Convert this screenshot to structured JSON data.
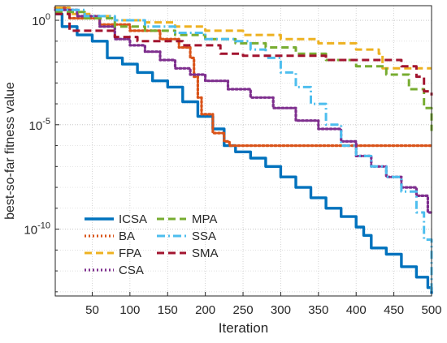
{
  "chart_data": {
    "type": "line",
    "title": "",
    "xlabel": "Iteration",
    "ylabel": "best-so-far fitness value",
    "xlim": [
      1,
      500
    ],
    "ylim_log10": [
      -13.2,
      0.7
    ],
    "yscale": "log",
    "grid": true,
    "legend_position": "bottom-left",
    "x_ticks": [
      50,
      100,
      150,
      200,
      250,
      300,
      350,
      400,
      450,
      500
    ],
    "y_ticks": [
      {
        "exp": 0,
        "label": "10^0"
      },
      {
        "exp": -5,
        "label": "10^-5"
      },
      {
        "exp": -10,
        "label": "10^-10"
      }
    ],
    "series": [
      {
        "name": "ICSA",
        "color": "#0072BD",
        "style": "solid",
        "width": 3.4,
        "log10_points": [
          [
            1,
            0.3
          ],
          [
            10,
            -0.3
          ],
          [
            30,
            -0.7
          ],
          [
            50,
            -1.0
          ],
          [
            70,
            -1.8
          ],
          [
            90,
            -2.1
          ],
          [
            110,
            -2.5
          ],
          [
            130,
            -2.9
          ],
          [
            150,
            -3.2
          ],
          [
            170,
            -3.9
          ],
          [
            190,
            -4.6
          ],
          [
            210,
            -5.2
          ],
          [
            225,
            -6.0
          ],
          [
            240,
            -6.3
          ],
          [
            260,
            -6.6
          ],
          [
            280,
            -7.0
          ],
          [
            300,
            -7.5
          ],
          [
            320,
            -8.0
          ],
          [
            340,
            -8.5
          ],
          [
            360,
            -9.0
          ],
          [
            380,
            -9.4
          ],
          [
            400,
            -9.9
          ],
          [
            410,
            -10.3
          ],
          [
            420,
            -10.9
          ],
          [
            440,
            -11.2
          ],
          [
            460,
            -11.8
          ],
          [
            480,
            -12.3
          ],
          [
            495,
            -12.8
          ],
          [
            500,
            -13.1
          ]
        ]
      },
      {
        "name": "BA",
        "color": "#D95319",
        "style": "dotted",
        "width": 3.2,
        "log10_points": [
          [
            1,
            0.6
          ],
          [
            20,
            0.1
          ],
          [
            60,
            -0.2
          ],
          [
            100,
            -0.5
          ],
          [
            140,
            -0.9
          ],
          [
            165,
            -1.3
          ],
          [
            180,
            -1.8
          ],
          [
            185,
            -2.7
          ],
          [
            190,
            -3.7
          ],
          [
            195,
            -4.5
          ],
          [
            210,
            -5.4
          ],
          [
            225,
            -5.8
          ],
          [
            232,
            -6.0
          ],
          [
            500,
            -6.0
          ]
        ]
      },
      {
        "name": "FPA",
        "color": "#EDB120",
        "style": "dashed",
        "width": 3.0,
        "log10_points": [
          [
            1,
            0.6
          ],
          [
            20,
            0.3
          ],
          [
            50,
            0.2
          ],
          [
            80,
            0.0
          ],
          [
            120,
            -0.1
          ],
          [
            160,
            -0.3
          ],
          [
            200,
            -0.5
          ],
          [
            250,
            -0.7
          ],
          [
            300,
            -0.9
          ],
          [
            350,
            -1.1
          ],
          [
            400,
            -1.4
          ],
          [
            430,
            -1.6
          ],
          [
            435,
            -2.3
          ],
          [
            500,
            -2.3
          ]
        ]
      },
      {
        "name": "CSA",
        "color": "#7E2F8E",
        "style": "dotted",
        "width": 3.2,
        "log10_points": [
          [
            1,
            0.5
          ],
          [
            30,
            0.2
          ],
          [
            60,
            -0.3
          ],
          [
            80,
            -0.9
          ],
          [
            100,
            -1.2
          ],
          [
            120,
            -1.5
          ],
          [
            140,
            -1.9
          ],
          [
            160,
            -2.3
          ],
          [
            180,
            -2.6
          ],
          [
            200,
            -2.9
          ],
          [
            230,
            -3.3
          ],
          [
            260,
            -3.7
          ],
          [
            290,
            -4.2
          ],
          [
            320,
            -4.8
          ],
          [
            350,
            -5.2
          ],
          [
            380,
            -5.8
          ],
          [
            400,
            -6.5
          ],
          [
            420,
            -7.0
          ],
          [
            440,
            -7.5
          ],
          [
            460,
            -8.0
          ],
          [
            480,
            -8.4
          ],
          [
            495,
            -9.2
          ],
          [
            500,
            -9.2
          ]
        ]
      },
      {
        "name": "MPA",
        "color": "#77AC30",
        "style": "dashed",
        "width": 3.0,
        "log10_points": [
          [
            1,
            0.4
          ],
          [
            40,
            0.1
          ],
          [
            80,
            -0.3
          ],
          [
            120,
            -0.5
          ],
          [
            160,
            -0.7
          ],
          [
            200,
            -0.9
          ],
          [
            240,
            -1.1
          ],
          [
            280,
            -1.3
          ],
          [
            320,
            -1.6
          ],
          [
            360,
            -1.9
          ],
          [
            400,
            -2.2
          ],
          [
            440,
            -2.6
          ],
          [
            470,
            -3.3
          ],
          [
            490,
            -4.2
          ],
          [
            500,
            -5.3
          ]
        ]
      },
      {
        "name": "SSA",
        "color": "#4DBEEE",
        "style": "dashdot",
        "width": 3.0,
        "log10_points": [
          [
            1,
            0.5
          ],
          [
            40,
            0.2
          ],
          [
            80,
            0.0
          ],
          [
            120,
            -0.3
          ],
          [
            160,
            -0.6
          ],
          [
            200,
            -0.9
          ],
          [
            240,
            -1.0
          ],
          [
            260,
            -1.4
          ],
          [
            280,
            -1.8
          ],
          [
            300,
            -2.5
          ],
          [
            320,
            -3.2
          ],
          [
            340,
            -4.0
          ],
          [
            360,
            -5.0
          ],
          [
            380,
            -6.0
          ],
          [
            400,
            -6.5
          ],
          [
            420,
            -7.0
          ],
          [
            440,
            -7.5
          ],
          [
            460,
            -8.2
          ],
          [
            480,
            -9.2
          ],
          [
            490,
            -10.5
          ],
          [
            500,
            -13.0
          ]
        ]
      },
      {
        "name": "SMA",
        "color": "#A2142F",
        "style": "dashed",
        "width": 3.0,
        "log10_points": [
          [
            1,
            0.3
          ],
          [
            20,
            -0.5
          ],
          [
            50,
            -0.5
          ],
          [
            80,
            -0.8
          ],
          [
            110,
            -1.0
          ],
          [
            170,
            -1.2
          ],
          [
            220,
            -1.6
          ],
          [
            250,
            -1.7
          ],
          [
            300,
            -1.7
          ],
          [
            360,
            -1.9
          ],
          [
            420,
            -1.9
          ],
          [
            460,
            -2.2
          ],
          [
            480,
            -2.7
          ],
          [
            490,
            -3.4
          ],
          [
            500,
            -3.6
          ]
        ]
      }
    ]
  }
}
